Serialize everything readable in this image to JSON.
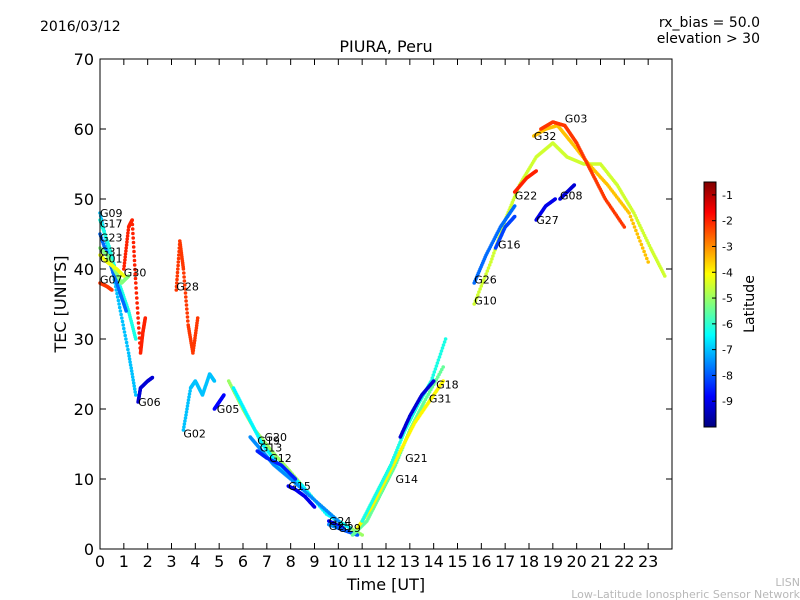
{
  "header": {
    "date": "2016/03/12",
    "params": [
      "rx_bias = 50.0",
      "elevation > 30"
    ]
  },
  "footer": {
    "credit": [
      "LISN",
      "Low-Latitude Ionospheric Sensor Network"
    ]
  },
  "chart_data": {
    "type": "scatter",
    "title": "PIURA, Peru",
    "xlabel": "Time [UT]",
    "ylabel": "TEC [UNITS]",
    "xlim": [
      0,
      24
    ],
    "ylim": [
      0,
      70
    ],
    "xticks": [
      0,
      1,
      2,
      3,
      4,
      5,
      6,
      7,
      8,
      9,
      10,
      11,
      12,
      13,
      14,
      15,
      16,
      17,
      18,
      19,
      20,
      21,
      22,
      23
    ],
    "yticks": [
      0,
      10,
      20,
      30,
      40,
      50,
      60,
      70
    ],
    "grid": false,
    "colorbar": {
      "label": "Latitude",
      "range": [
        -10,
        -0.5
      ],
      "ticks": [
        -9,
        -8,
        -7,
        -6,
        -5,
        -4,
        -3,
        -2,
        -1
      ],
      "colormap": [
        "#00007f",
        "#0000ff",
        "#007fff",
        "#00ffff",
        "#7fff7f",
        "#ffff00",
        "#ff7f00",
        "#ff0000",
        "#7f0000"
      ]
    },
    "series": [
      {
        "name": "G09",
        "label_at": [
          0.0,
          48.0
        ],
        "lat": -7.0,
        "points": [
          [
            0.0,
            48
          ],
          [
            0.4,
            42
          ],
          [
            0.8,
            35
          ],
          [
            1.2,
            28
          ],
          [
            1.5,
            22
          ]
        ]
      },
      {
        "name": "G17",
        "label_at": [
          0.0,
          46.5
        ],
        "lat": -6.2,
        "points": [
          [
            0.0,
            47
          ],
          [
            0.4,
            43
          ],
          [
            0.8,
            38
          ],
          [
            1.2,
            34
          ],
          [
            1.5,
            30
          ]
        ]
      },
      {
        "name": "G23",
        "label_at": [
          0.0,
          44.5
        ],
        "lat": -7.8,
        "points": [
          [
            0.0,
            45
          ],
          [
            0.4,
            41
          ],
          [
            0.8,
            37
          ],
          [
            1.1,
            34
          ]
        ]
      },
      {
        "name": "G31",
        "label_at": [
          0.0,
          42.5
        ],
        "lat": -5.2,
        "points": [
          [
            0.0,
            43
          ],
          [
            0.3,
            42
          ],
          [
            0.6,
            40
          ],
          [
            0.9,
            38
          ],
          [
            1.2,
            39
          ]
        ]
      },
      {
        "name": "G01",
        "label_at": [
          0.0,
          41.5
        ],
        "lat": -4.2,
        "points": [
          [
            0.0,
            42
          ],
          [
            0.3,
            41
          ],
          [
            0.7,
            40
          ],
          [
            1.0,
            39
          ]
        ]
      },
      {
        "name": "G07",
        "label_at": [
          0.0,
          38.5
        ],
        "lat": -2.2,
        "points": [
          [
            0.0,
            38
          ],
          [
            0.3,
            37.5
          ],
          [
            0.5,
            37
          ]
        ]
      },
      {
        "name": "G30",
        "label_at": [
          1.0,
          39.5
        ],
        "lat": -2.0,
        "points": [
          [
            1.0,
            40
          ],
          [
            1.2,
            46
          ],
          [
            1.35,
            47
          ],
          [
            1.5,
            38
          ],
          [
            1.7,
            28
          ],
          [
            1.8,
            31
          ],
          [
            1.9,
            33
          ]
        ]
      },
      {
        "name": "G06",
        "label_at": [
          1.6,
          21.0
        ],
        "lat": -9.2,
        "points": [
          [
            1.6,
            21
          ],
          [
            1.7,
            23
          ],
          [
            2.0,
            24
          ],
          [
            2.2,
            24.5
          ]
        ]
      },
      {
        "name": "G28",
        "label_at": [
          3.2,
          37.5
        ],
        "lat": -2.2,
        "points": [
          [
            3.2,
            37
          ],
          [
            3.35,
            44
          ],
          [
            3.5,
            40
          ],
          [
            3.7,
            32
          ],
          [
            3.9,
            28
          ],
          [
            4.1,
            33
          ]
        ]
      },
      {
        "name": "G02",
        "label_at": [
          3.5,
          16.5
        ],
        "lat": -7.0,
        "points": [
          [
            3.5,
            17
          ],
          [
            3.8,
            23
          ],
          [
            4.0,
            24
          ],
          [
            4.3,
            22
          ],
          [
            4.6,
            25
          ],
          [
            4.8,
            24
          ]
        ]
      },
      {
        "name": "G05",
        "label_at": [
          4.9,
          20.0
        ],
        "lat": -8.8,
        "points": [
          [
            4.8,
            20
          ],
          [
            5.0,
            21
          ],
          [
            5.2,
            22
          ]
        ]
      },
      {
        "name": "G20",
        "label_at": [
          6.9,
          16.0
        ],
        "lat": -5.0,
        "points": [
          [
            5.4,
            24
          ],
          [
            6.0,
            20
          ],
          [
            6.5,
            17
          ],
          [
            7.2,
            14
          ],
          [
            8.0,
            11
          ],
          [
            9.0,
            7
          ],
          [
            10.0,
            4
          ],
          [
            11.0,
            2
          ]
        ]
      },
      {
        "name": "G19",
        "label_at": [
          6.6,
          15.5
        ],
        "lat": -6.5,
        "points": [
          [
            5.6,
            23
          ],
          [
            6.2,
            19
          ],
          [
            6.8,
            15
          ],
          [
            7.5,
            12
          ],
          [
            8.5,
            9
          ],
          [
            9.5,
            5
          ],
          [
            10.5,
            3
          ]
        ]
      },
      {
        "name": "G13",
        "label_at": [
          6.7,
          14.5
        ],
        "lat": -7.5,
        "points": [
          [
            6.3,
            16
          ],
          [
            6.8,
            14
          ],
          [
            7.3,
            12
          ],
          [
            8.0,
            10
          ],
          [
            9.0,
            7
          ],
          [
            10.0,
            4
          ]
        ]
      },
      {
        "name": "G12",
        "label_at": [
          7.1,
          13.0
        ],
        "lat": -8.5,
        "points": [
          [
            6.6,
            14
          ],
          [
            7.0,
            13
          ],
          [
            7.6,
            12
          ],
          [
            8.2,
            10
          ]
        ]
      },
      {
        "name": "G15",
        "label_at": [
          7.9,
          9.0
        ],
        "lat": -9.0,
        "points": [
          [
            7.9,
            9
          ],
          [
            8.2,
            8.5
          ],
          [
            8.6,
            7.5
          ],
          [
            9.0,
            6
          ]
        ]
      },
      {
        "name": "G24",
        "label_at": [
          9.6,
          4.0
        ],
        "lat": -9.0,
        "points": [
          [
            9.6,
            4
          ],
          [
            9.9,
            3.5
          ],
          [
            10.2,
            3
          ]
        ]
      },
      {
        "name": "G25",
        "label_at": [
          9.6,
          3.3
        ],
        "lat": -7.5,
        "points": [
          [
            9.6,
            3.5
          ],
          [
            10.0,
            3
          ],
          [
            10.4,
            2.5
          ]
        ]
      },
      {
        "name": "G29",
        "label_at": [
          10.0,
          3.0
        ],
        "lat": -8.0,
        "points": [
          [
            10.0,
            3
          ],
          [
            10.4,
            2.5
          ],
          [
            10.8,
            2
          ]
        ]
      },
      {
        "name": "G14",
        "label_at": [
          12.4,
          10.0
        ],
        "lat": -5.5,
        "points": [
          [
            10.6,
            2
          ],
          [
            11.2,
            4
          ],
          [
            11.8,
            8
          ],
          [
            12.4,
            12
          ],
          [
            13.0,
            17
          ],
          [
            13.6,
            21
          ],
          [
            14.4,
            26
          ]
        ]
      },
      {
        "name": "G21",
        "label_at": [
          12.8,
          13.0
        ],
        "lat": -4.0,
        "points": [
          [
            10.8,
            3
          ],
          [
            11.4,
            6
          ],
          [
            12.0,
            10
          ],
          [
            12.6,
            14
          ],
          [
            13.2,
            18
          ],
          [
            13.8,
            21
          ],
          [
            14.4,
            24
          ]
        ]
      },
      {
        "name": "G31b",
        "label_at": [
          13.8,
          21.5
        ],
        "lat": -6.2,
        "points": [
          [
            11.0,
            4
          ],
          [
            11.6,
            8
          ],
          [
            12.2,
            12
          ],
          [
            12.8,
            17
          ],
          [
            13.4,
            21
          ],
          [
            13.9,
            24
          ],
          [
            14.5,
            30
          ]
        ]
      },
      {
        "name": "G18",
        "label_at": [
          14.1,
          23.5
        ],
        "lat": -9.2,
        "points": [
          [
            12.6,
            16
          ],
          [
            13.0,
            19
          ],
          [
            13.5,
            22
          ],
          [
            14.0,
            24
          ]
        ]
      },
      {
        "name": "G10",
        "label_at": [
          15.7,
          35.5
        ],
        "lat": -4.5,
        "points": [
          [
            15.7,
            35
          ],
          [
            16.4,
            41
          ],
          [
            17.0,
            47
          ],
          [
            17.6,
            52
          ],
          [
            18.3,
            56
          ],
          [
            19.0,
            58
          ],
          [
            19.6,
            56
          ],
          [
            20.3,
            55
          ],
          [
            21.0,
            55
          ],
          [
            21.7,
            52
          ],
          [
            22.4,
            48
          ],
          [
            23.1,
            43
          ],
          [
            23.7,
            39
          ]
        ]
      },
      {
        "name": "G26",
        "label_at": [
          15.7,
          38.5
        ],
        "lat": -7.8,
        "points": [
          [
            15.7,
            38
          ],
          [
            16.2,
            42
          ],
          [
            16.8,
            46
          ],
          [
            17.4,
            49
          ]
        ]
      },
      {
        "name": "G16",
        "label_at": [
          16.7,
          43.5
        ],
        "lat": -8.2,
        "points": [
          [
            16.6,
            43
          ],
          [
            17.0,
            46
          ],
          [
            17.4,
            47.5
          ]
        ]
      },
      {
        "name": "G22",
        "label_at": [
          17.4,
          50.5
        ],
        "lat": -2.0,
        "points": [
          [
            17.4,
            51
          ],
          [
            17.9,
            53
          ],
          [
            18.3,
            54
          ]
        ]
      },
      {
        "name": "G27",
        "label_at": [
          18.3,
          47.0
        ],
        "lat": -9.0,
        "points": [
          [
            18.3,
            47
          ],
          [
            18.7,
            49
          ],
          [
            19.1,
            50
          ]
        ]
      },
      {
        "name": "G32",
        "label_at": [
          18.2,
          59.0
        ],
        "lat": -3.5,
        "points": [
          [
            18.2,
            59
          ],
          [
            18.7,
            60
          ],
          [
            19.2,
            60.5
          ],
          [
            19.8,
            58
          ],
          [
            20.5,
            55
          ],
          [
            21.3,
            52
          ],
          [
            22.2,
            48
          ],
          [
            23.0,
            41
          ]
        ]
      },
      {
        "name": "G08",
        "label_at": [
          19.3,
          50.5
        ],
        "lat": -9.2,
        "points": [
          [
            19.3,
            50
          ],
          [
            19.6,
            51
          ],
          [
            19.9,
            52
          ]
        ]
      },
      {
        "name": "G03",
        "label_at": [
          19.5,
          61.5
        ],
        "lat": -2.2,
        "points": [
          [
            18.5,
            60
          ],
          [
            19.0,
            61
          ],
          [
            19.5,
            60.5
          ],
          [
            20.0,
            58
          ],
          [
            20.6,
            54
          ],
          [
            21.2,
            50
          ],
          [
            22.0,
            46
          ]
        ]
      }
    ]
  }
}
